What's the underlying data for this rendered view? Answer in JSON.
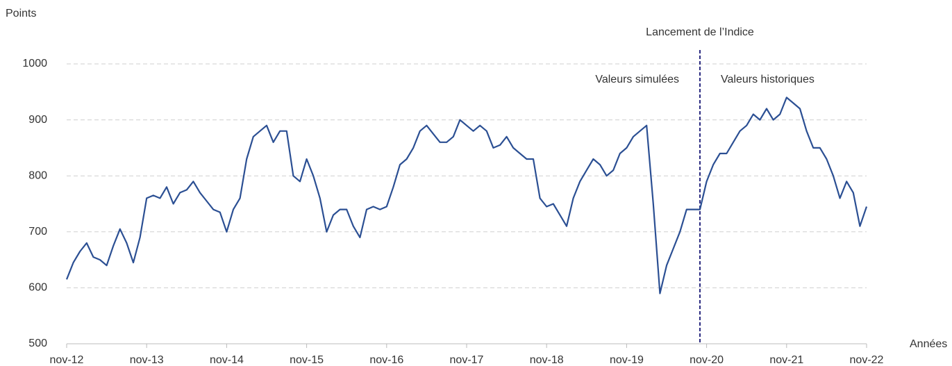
{
  "chart_data": {
    "type": "line",
    "y_label": "Points",
    "x_label": "Années",
    "annotations": [
      {
        "text": "Lancement de l’Indice"
      },
      {
        "text": "Valeurs simulées"
      },
      {
        "text": "Valeurs historiques"
      }
    ],
    "vline_x": "2020-10",
    "xlim": [
      "2012-11",
      "2022-11"
    ],
    "xticks": [
      {
        "value": "2012-11",
        "label": "nov-12"
      },
      {
        "value": "2013-11",
        "label": "nov-13"
      },
      {
        "value": "2014-11",
        "label": "nov-14"
      },
      {
        "value": "2015-11",
        "label": "nov-15"
      },
      {
        "value": "2016-11",
        "label": "nov-16"
      },
      {
        "value": "2017-11",
        "label": "nov-17"
      },
      {
        "value": "2018-11",
        "label": "nov-18"
      },
      {
        "value": "2019-11",
        "label": "nov-19"
      },
      {
        "value": "2020-11",
        "label": "nov-20"
      },
      {
        "value": "2021-11",
        "label": "nov-21"
      },
      {
        "value": "2022-11",
        "label": "nov-22"
      }
    ],
    "ylim": [
      500,
      1000
    ],
    "yticks": [
      500,
      600,
      700,
      800,
      900,
      1000
    ],
    "grid": true,
    "x": [
      "2012-11",
      "2012-12",
      "2013-01",
      "2013-02",
      "2013-03",
      "2013-04",
      "2013-05",
      "2013-06",
      "2013-07",
      "2013-08",
      "2013-09",
      "2013-10",
      "2013-11",
      "2013-12",
      "2014-01",
      "2014-02",
      "2014-03",
      "2014-04",
      "2014-05",
      "2014-06",
      "2014-07",
      "2014-08",
      "2014-09",
      "2014-10",
      "2014-11",
      "2014-12",
      "2015-01",
      "2015-02",
      "2015-03",
      "2015-04",
      "2015-05",
      "2015-06",
      "2015-07",
      "2015-08",
      "2015-09",
      "2015-10",
      "2015-11",
      "2015-12",
      "2016-01",
      "2016-02",
      "2016-03",
      "2016-04",
      "2016-05",
      "2016-06",
      "2016-07",
      "2016-08",
      "2016-09",
      "2016-10",
      "2016-11",
      "2016-12",
      "2017-01",
      "2017-02",
      "2017-03",
      "2017-04",
      "2017-05",
      "2017-06",
      "2017-07",
      "2017-08",
      "2017-09",
      "2017-10",
      "2017-11",
      "2017-12",
      "2018-01",
      "2018-02",
      "2018-03",
      "2018-04",
      "2018-05",
      "2018-06",
      "2018-07",
      "2018-08",
      "2018-09",
      "2018-10",
      "2018-11",
      "2018-12",
      "2019-01",
      "2019-02",
      "2019-03",
      "2019-04",
      "2019-05",
      "2019-06",
      "2019-07",
      "2019-08",
      "2019-09",
      "2019-10",
      "2019-11",
      "2019-12",
      "2020-01",
      "2020-02",
      "2020-03",
      "2020-04",
      "2020-05",
      "2020-06",
      "2020-07",
      "2020-08",
      "2020-09",
      "2020-10",
      "2020-11",
      "2020-12",
      "2021-01",
      "2021-02",
      "2021-03",
      "2021-04",
      "2021-05",
      "2021-06",
      "2021-07",
      "2021-08",
      "2021-09",
      "2021-10",
      "2021-11",
      "2021-12",
      "2022-01",
      "2022-02",
      "2022-03",
      "2022-04",
      "2022-05",
      "2022-06",
      "2022-07",
      "2022-08",
      "2022-09",
      "2022-10",
      "2022-11"
    ],
    "series": [
      {
        "color": "#2b4f93",
        "values": [
          615,
          645,
          665,
          680,
          655,
          650,
          640,
          675,
          705,
          680,
          645,
          690,
          760,
          765,
          760,
          780,
          750,
          770,
          775,
          790,
          770,
          755,
          740,
          735,
          700,
          740,
          760,
          830,
          870,
          880,
          890,
          860,
          880,
          880,
          800,
          790,
          830,
          800,
          760,
          700,
          730,
          740,
          740,
          710,
          690,
          740,
          745,
          740,
          745,
          780,
          820,
          830,
          850,
          880,
          890,
          875,
          860,
          860,
          870,
          900,
          890,
          880,
          890,
          880,
          850,
          855,
          870,
          850,
          840,
          830,
          830,
          760,
          745,
          750,
          730,
          710,
          760,
          790,
          810,
          830,
          820,
          800,
          810,
          840,
          850,
          870,
          880,
          890,
          750,
          590,
          640,
          670,
          700,
          740,
          740,
          740,
          790,
          820,
          840,
          840,
          860,
          880,
          890,
          910,
          900,
          920,
          900,
          910,
          940,
          930,
          920,
          880,
          850,
          850,
          830,
          800,
          760,
          790,
          770,
          710,
          745
        ]
      }
    ]
  }
}
